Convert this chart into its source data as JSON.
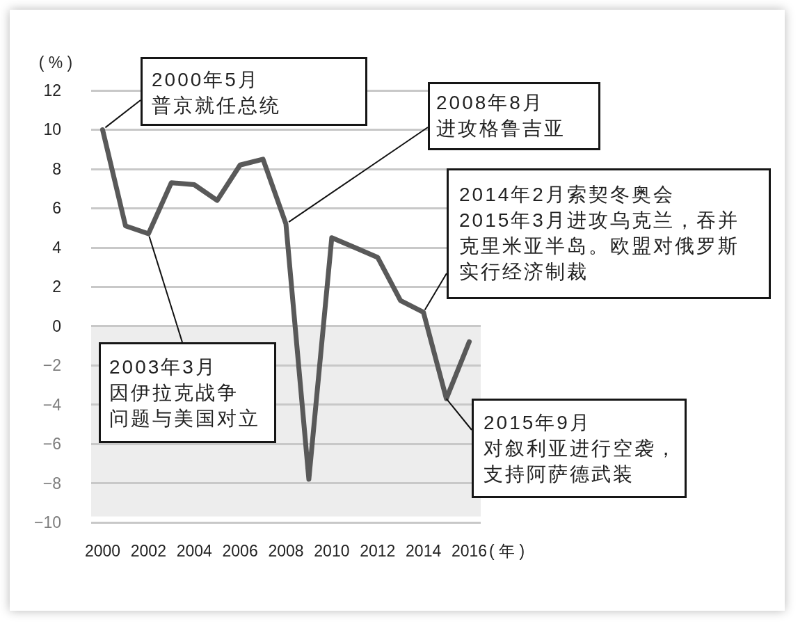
{
  "chart_data": {
    "type": "line",
    "x": [
      2000,
      2001,
      2002,
      2003,
      2004,
      2005,
      2006,
      2007,
      2008,
      2009,
      2010,
      2011,
      2012,
      2013,
      2014,
      2015,
      2016
    ],
    "series": [
      {
        "color": "#595959",
        "values": [
          10.0,
          5.1,
          4.7,
          7.3,
          7.2,
          6.4,
          8.2,
          8.5,
          5.2,
          -7.8,
          4.5,
          4.0,
          3.5,
          1.3,
          0.7,
          -3.7,
          -0.8
        ]
      }
    ],
    "xlim": [
      1999.5,
      2016.5
    ],
    "xticks": [
      2000,
      2002,
      2004,
      2006,
      2008,
      2010,
      2012,
      2014,
      2016
    ],
    "ylim": [
      -10,
      12
    ],
    "yticks": [
      {
        "value": -10,
        "label": "−10"
      },
      {
        "value": -8,
        "label": "−8"
      },
      {
        "value": -6,
        "label": "−6"
      },
      {
        "value": -4,
        "label": "−4"
      },
      {
        "value": -2,
        "label": "−2"
      },
      0,
      2,
      4,
      6,
      8,
      10,
      12
    ],
    "xlabel": "( 年 )",
    "ylabel": "( % )",
    "grid": "y",
    "line_style": "solid",
    "bands": [
      {
        "axis": "y",
        "from": 0,
        "to": -9.7,
        "color": "#ededed"
      }
    ],
    "annotations": [
      {
        "text": "2000年5月普京就任总统",
        "x": 2000,
        "y": 10.0
      },
      {
        "text": "2003年3月因伊拉克战争问题与美国对立",
        "x": 2002,
        "y": 4.7
      },
      {
        "text": "2008年8月进攻格鲁吉亚",
        "x": 2008,
        "y": 5.2
      },
      {
        "text": "2014年2月索契冬奥会2015年3月进攻乌克兰，吞并克里米亚半岛。欧盟对俄罗斯实行经济制裁",
        "x": 2014,
        "y": 0.7
      },
      {
        "text": "2015年9月对叙利亚进行空袭，支持阿萨德武装",
        "x": 2015,
        "y": -3.7
      }
    ]
  }
}
